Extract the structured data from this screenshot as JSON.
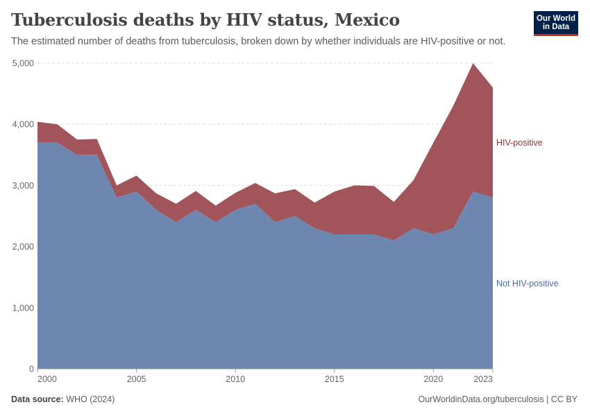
{
  "header": {
    "title": "Tuberculosis deaths by HIV status, Mexico",
    "subtitle": "The estimated number of deaths from tuberculosis, broken down by whether individuals are HIV-positive or not."
  },
  "logo": {
    "line1": "Our World",
    "line2": "in Data",
    "background": "#002147",
    "accent": "#ce261e"
  },
  "footer": {
    "source_label": "Data source:",
    "source_value": "WHO (2024)",
    "link": "OurWorldinData.org/tuberculosis | CC BY"
  },
  "chart_data": {
    "type": "area",
    "stacked": true,
    "grid": "horizontal dashed",
    "xlim": [
      2000,
      2023
    ],
    "ylim": [
      0,
      5000
    ],
    "y_ticks": [
      0,
      1000,
      2000,
      3000,
      4000,
      5000
    ],
    "y_tick_labels": [
      "0",
      "1,000",
      "2,000",
      "3,000",
      "4,000",
      "5,000"
    ],
    "x_ticks": [
      2000,
      2005,
      2010,
      2015,
      2020,
      2023
    ],
    "x_tick_labels": [
      "2000",
      "2005",
      "2010",
      "2015",
      "2020",
      "2023"
    ],
    "x": [
      2000,
      2001,
      2002,
      2003,
      2004,
      2005,
      2006,
      2007,
      2008,
      2009,
      2010,
      2011,
      2012,
      2013,
      2014,
      2015,
      2016,
      2017,
      2018,
      2019,
      2020,
      2021,
      2022,
      2023
    ],
    "series": [
      {
        "name": "Not HIV-positive",
        "color": "#6d87b0",
        "label_color": "#4c6a9c",
        "values": [
          3700,
          3700,
          3500,
          3500,
          2800,
          2900,
          2600,
          2400,
          2600,
          2400,
          2600,
          2700,
          2400,
          2500,
          2300,
          2200,
          2200,
          2200,
          2100,
          2300,
          2200,
          2300,
          2900,
          2800
        ]
      },
      {
        "name": "HIV-positive",
        "color": "#a2545b",
        "label_color": "#883039",
        "values": [
          340,
          300,
          250,
          260,
          200,
          260,
          270,
          300,
          310,
          270,
          280,
          340,
          470,
          440,
          420,
          700,
          800,
          790,
          630,
          790,
          1500,
          2000,
          2100,
          1800
        ]
      }
    ]
  }
}
